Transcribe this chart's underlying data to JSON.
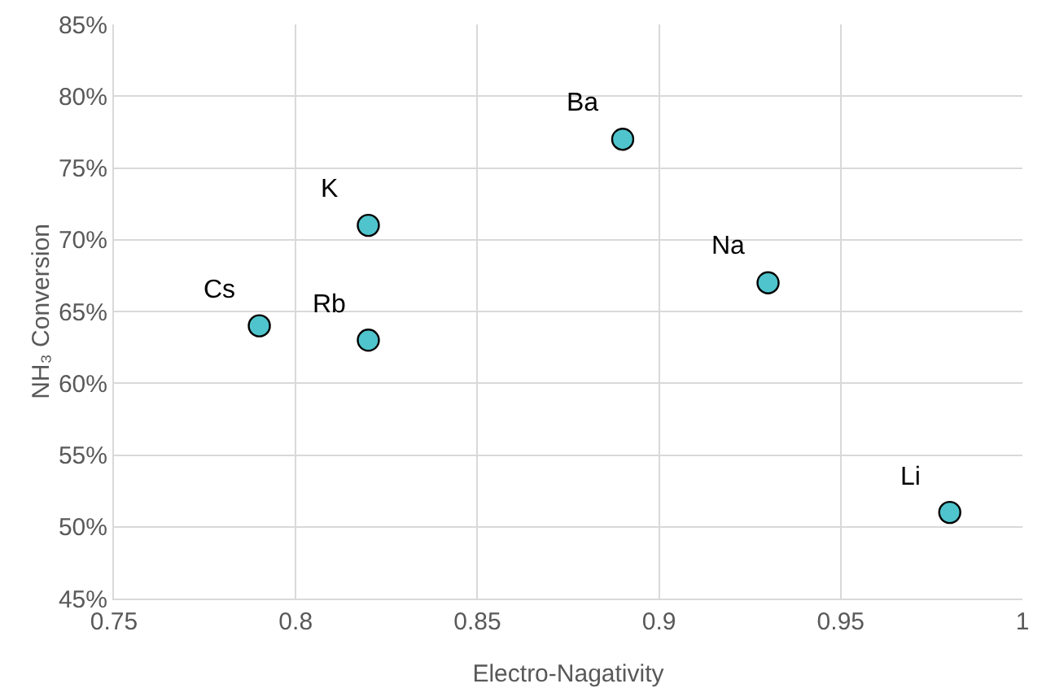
{
  "chart_data": {
    "type": "scatter",
    "xlabel": "Electro-Nagativity",
    "ylabel": "NH₃ Conversion",
    "x": [
      0.79,
      0.82,
      0.82,
      0.89,
      0.93,
      0.98
    ],
    "series": [
      {
        "color": "#4fc4cc",
        "values": [
          64,
          71,
          63,
          77,
          67,
          51
        ]
      }
    ],
    "annotations": [
      {
        "text": "Cs",
        "x": 0.79,
        "y": 64
      },
      {
        "text": "K",
        "x": 0.82,
        "y": 71
      },
      {
        "text": "Rb",
        "x": 0.82,
        "y": 63
      },
      {
        "text": "Ba",
        "x": 0.89,
        "y": 77
      },
      {
        "text": "Na",
        "x": 0.93,
        "y": 67
      },
      {
        "text": "Li",
        "x": 0.98,
        "y": 51
      }
    ],
    "xlim": [
      0.75,
      1
    ],
    "xticks": [
      0.75,
      0.8,
      0.85,
      0.9,
      0.95,
      1
    ],
    "ylim": [
      45,
      85
    ],
    "yticks": [
      {
        "value": 45,
        "label": "45%"
      },
      {
        "value": 50,
        "label": "50%"
      },
      {
        "value": 55,
        "label": "55%"
      },
      {
        "value": 60,
        "label": "60%"
      },
      {
        "value": 65,
        "label": "65%"
      },
      {
        "value": 70,
        "label": "70%"
      },
      {
        "value": 75,
        "label": "75%"
      },
      {
        "value": 80,
        "label": "80%"
      },
      {
        "value": 85,
        "label": "85%"
      }
    ],
    "grid": true,
    "marker": "circle"
  }
}
